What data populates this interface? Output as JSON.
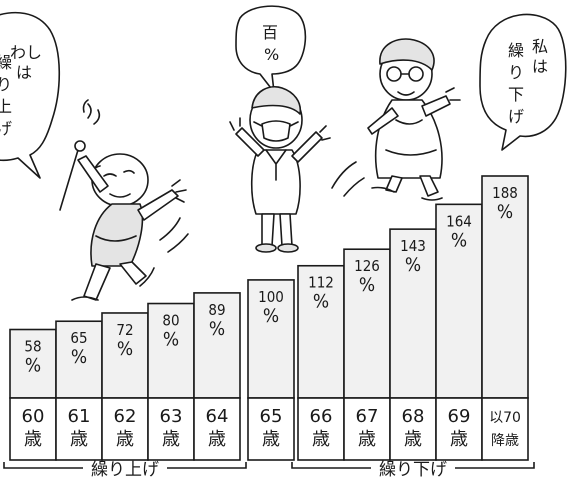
{
  "chart_data": {
    "type": "bar",
    "title": "",
    "xlabel": "",
    "ylabel": "",
    "ylim": [
      0,
      188
    ],
    "categories": [
      "60歳",
      "61歳",
      "62歳",
      "63歳",
      "64歳",
      "65歳",
      "66歳",
      "67歳",
      "68歳",
      "69歳",
      "以70降歳"
    ],
    "category_lines": [
      [
        "60",
        "歳"
      ],
      [
        "61",
        "歳"
      ],
      [
        "62",
        "歳"
      ],
      [
        "63",
        "歳"
      ],
      [
        "64",
        "歳"
      ],
      [
        "65",
        "歳"
      ],
      [
        "66",
        "歳"
      ],
      [
        "67",
        "歳"
      ],
      [
        "68",
        "歳"
      ],
      [
        "69",
        "歳"
      ],
      [
        "以70",
        "降歳"
      ]
    ],
    "values": [
      58,
      65,
      72,
      80,
      89,
      100,
      112,
      126,
      143,
      164,
      188
    ],
    "value_unit": "%",
    "groups": [
      {
        "label": "繰り上げ",
        "start": 0,
        "end": 4
      },
      {
        "label": "繰り下げ",
        "start": 6,
        "end": 10
      }
    ]
  },
  "bubbles": {
    "left": [
      "わし",
      "は",
      "繰",
      "り",
      "上",
      "げ"
    ],
    "middle": [
      "百",
      "%"
    ],
    "right": [
      "私",
      "は",
      "繰",
      "り",
      "下",
      "げ"
    ]
  },
  "colors": {
    "ink": "#1a1a1a",
    "bar_fill": "#f1f1f1",
    "background": "#ffffff"
  }
}
